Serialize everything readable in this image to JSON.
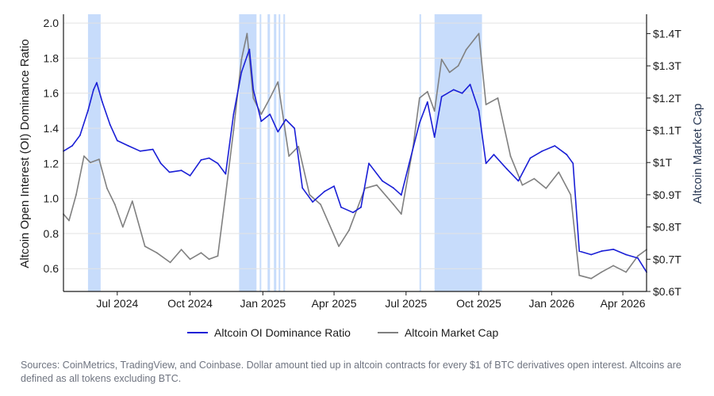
{
  "chart_data": {
    "type": "line",
    "xlabel": "",
    "x_ticks": [
      "Jul 2024",
      "Oct 2024",
      "Jan 2025",
      "Apr 2025",
      "Jul 2025",
      "Oct 2025",
      "Jan 2026",
      "Apr 2026"
    ],
    "x_range": [
      "2024-04-24",
      "2026-05-01"
    ],
    "ylabel_left": "Altcoin Open Interest (OI) Dominance Ratio",
    "ylim_left": [
      0.47,
      2.05
    ],
    "yticks_left": [
      "0.6",
      "0.8",
      "1.0",
      "1.2",
      "1.4",
      "1.6",
      "1.8",
      "2.0"
    ],
    "ylabel_right": "Altcoin Market Cap",
    "ylim_right_trillions": [
      0.6,
      1.46
    ],
    "yticks_right": [
      "$0.6T",
      "$0.7T",
      "$0.8T",
      "$0.9T",
      "$1T",
      "$1.1T",
      "$1.2T",
      "$1.3T",
      "$1.4T"
    ],
    "grid": "horizontal",
    "legend_position": "bottom-center",
    "shaded_periods": [
      [
        "2024-05-25",
        "2024-06-10"
      ],
      [
        "2024-12-02",
        "2024-12-24"
      ],
      [
        "2024-12-28",
        "2024-12-29"
      ],
      [
        "2025-01-07",
        "2025-01-10"
      ],
      [
        "2025-01-15",
        "2025-01-18"
      ],
      [
        "2025-01-21",
        "2025-01-23"
      ],
      [
        "2025-01-27",
        "2025-01-29"
      ],
      [
        "2025-07-18",
        "2025-07-19"
      ],
      [
        "2025-08-06",
        "2025-10-05"
      ]
    ],
    "series": [
      {
        "name": "Altcoin OI Dominance Ratio",
        "color": "#1a1fd6",
        "axis": "left",
        "points": [
          [
            "2024-04-24",
            1.27
          ],
          [
            "2024-05-05",
            1.3
          ],
          [
            "2024-05-15",
            1.36
          ],
          [
            "2024-05-25",
            1.5
          ],
          [
            "2024-06-01",
            1.62
          ],
          [
            "2024-06-05",
            1.66
          ],
          [
            "2024-06-12",
            1.55
          ],
          [
            "2024-06-22",
            1.42
          ],
          [
            "2024-07-01",
            1.33
          ],
          [
            "2024-07-15",
            1.3
          ],
          [
            "2024-07-30",
            1.27
          ],
          [
            "2024-08-15",
            1.28
          ],
          [
            "2024-08-25",
            1.2
          ],
          [
            "2024-09-05",
            1.15
          ],
          [
            "2024-09-20",
            1.16
          ],
          [
            "2024-10-01",
            1.13
          ],
          [
            "2024-10-15",
            1.22
          ],
          [
            "2024-10-25",
            1.23
          ],
          [
            "2024-11-05",
            1.2
          ],
          [
            "2024-11-15",
            1.14
          ],
          [
            "2024-11-25",
            1.48
          ],
          [
            "2024-12-05",
            1.72
          ],
          [
            "2024-12-15",
            1.85
          ],
          [
            "2024-12-20",
            1.62
          ],
          [
            "2024-12-30",
            1.44
          ],
          [
            "2025-01-10",
            1.48
          ],
          [
            "2025-01-20",
            1.38
          ],
          [
            "2025-01-30",
            1.45
          ],
          [
            "2025-02-10",
            1.4
          ],
          [
            "2025-02-20",
            1.06
          ],
          [
            "2025-03-05",
            0.98
          ],
          [
            "2025-03-20",
            1.04
          ],
          [
            "2025-04-01",
            1.07
          ],
          [
            "2025-04-10",
            0.95
          ],
          [
            "2025-04-25",
            0.92
          ],
          [
            "2025-05-05",
            0.95
          ],
          [
            "2025-05-15",
            1.2
          ],
          [
            "2025-06-01",
            1.1
          ],
          [
            "2025-06-15",
            1.06
          ],
          [
            "2025-06-25",
            1.02
          ],
          [
            "2025-07-05",
            1.2
          ],
          [
            "2025-07-18",
            1.43
          ],
          [
            "2025-07-28",
            1.55
          ],
          [
            "2025-08-06",
            1.35
          ],
          [
            "2025-08-15",
            1.58
          ],
          [
            "2025-08-30",
            1.62
          ],
          [
            "2025-09-10",
            1.6
          ],
          [
            "2025-09-20",
            1.65
          ],
          [
            "2025-10-01",
            1.5
          ],
          [
            "2025-10-10",
            1.2
          ],
          [
            "2025-10-20",
            1.25
          ],
          [
            "2025-11-05",
            1.17
          ],
          [
            "2025-11-20",
            1.1
          ],
          [
            "2025-12-05",
            1.23
          ],
          [
            "2025-12-20",
            1.27
          ],
          [
            "2026-01-05",
            1.3
          ],
          [
            "2026-01-20",
            1.25
          ],
          [
            "2026-01-28",
            1.2
          ],
          [
            "2026-02-05",
            0.7
          ],
          [
            "2026-02-20",
            0.68
          ],
          [
            "2026-03-05",
            0.7
          ],
          [
            "2026-03-20",
            0.71
          ],
          [
            "2026-04-05",
            0.68
          ],
          [
            "2026-04-20",
            0.66
          ],
          [
            "2026-05-01",
            0.58
          ]
        ]
      },
      {
        "name": "Altcoin Market Cap",
        "color": "#808080",
        "axis": "right",
        "points": [
          [
            "2024-04-24",
            0.84
          ],
          [
            "2024-05-01",
            0.82
          ],
          [
            "2024-05-10",
            0.9
          ],
          [
            "2024-05-20",
            1.02
          ],
          [
            "2024-05-28",
            1.0
          ],
          [
            "2024-06-08",
            1.01
          ],
          [
            "2024-06-18",
            0.92
          ],
          [
            "2024-06-28",
            0.87
          ],
          [
            "2024-07-08",
            0.8
          ],
          [
            "2024-07-20",
            0.88
          ],
          [
            "2024-08-05",
            0.74
          ],
          [
            "2024-08-20",
            0.72
          ],
          [
            "2024-09-06",
            0.69
          ],
          [
            "2024-09-20",
            0.73
          ],
          [
            "2024-10-01",
            0.7
          ],
          [
            "2024-10-15",
            0.72
          ],
          [
            "2024-10-25",
            0.7
          ],
          [
            "2024-11-05",
            0.71
          ],
          [
            "2024-11-15",
            0.9
          ],
          [
            "2024-11-25",
            1.1
          ],
          [
            "2024-12-05",
            1.32
          ],
          [
            "2024-12-12",
            1.4
          ],
          [
            "2024-12-20",
            1.2
          ],
          [
            "2024-12-30",
            1.15
          ],
          [
            "2025-01-10",
            1.2
          ],
          [
            "2025-01-20",
            1.25
          ],
          [
            "2025-02-03",
            1.02
          ],
          [
            "2025-02-15",
            1.05
          ],
          [
            "2025-03-01",
            0.9
          ],
          [
            "2025-03-15",
            0.87
          ],
          [
            "2025-04-07",
            0.74
          ],
          [
            "2025-04-20",
            0.79
          ],
          [
            "2025-05-10",
            0.92
          ],
          [
            "2025-05-25",
            0.93
          ],
          [
            "2025-06-15",
            0.87
          ],
          [
            "2025-06-25",
            0.84
          ],
          [
            "2025-07-10",
            1.05
          ],
          [
            "2025-07-18",
            1.2
          ],
          [
            "2025-07-28",
            1.22
          ],
          [
            "2025-08-06",
            1.16
          ],
          [
            "2025-08-15",
            1.32
          ],
          [
            "2025-08-25",
            1.28
          ],
          [
            "2025-09-05",
            1.3
          ],
          [
            "2025-09-15",
            1.35
          ],
          [
            "2025-10-01",
            1.4
          ],
          [
            "2025-10-10",
            1.18
          ],
          [
            "2025-10-25",
            1.2
          ],
          [
            "2025-11-10",
            1.02
          ],
          [
            "2025-11-25",
            0.93
          ],
          [
            "2025-12-10",
            0.95
          ],
          [
            "2025-12-25",
            0.92
          ],
          [
            "2026-01-10",
            0.97
          ],
          [
            "2026-01-25",
            0.9
          ],
          [
            "2026-02-05",
            0.65
          ],
          [
            "2026-02-20",
            0.64
          ],
          [
            "2026-03-05",
            0.66
          ],
          [
            "2026-03-20",
            0.68
          ],
          [
            "2026-04-05",
            0.66
          ],
          [
            "2026-04-20",
            0.71
          ],
          [
            "2026-05-01",
            0.73
          ]
        ]
      }
    ]
  },
  "source_text": "Sources: CoinMetrics, TradingView, and Coinbase. Dollar amount tied up in altcoin contracts for every $1 of BTC derivatives open interest. Altcoins are defined as all tokens excluding BTC."
}
